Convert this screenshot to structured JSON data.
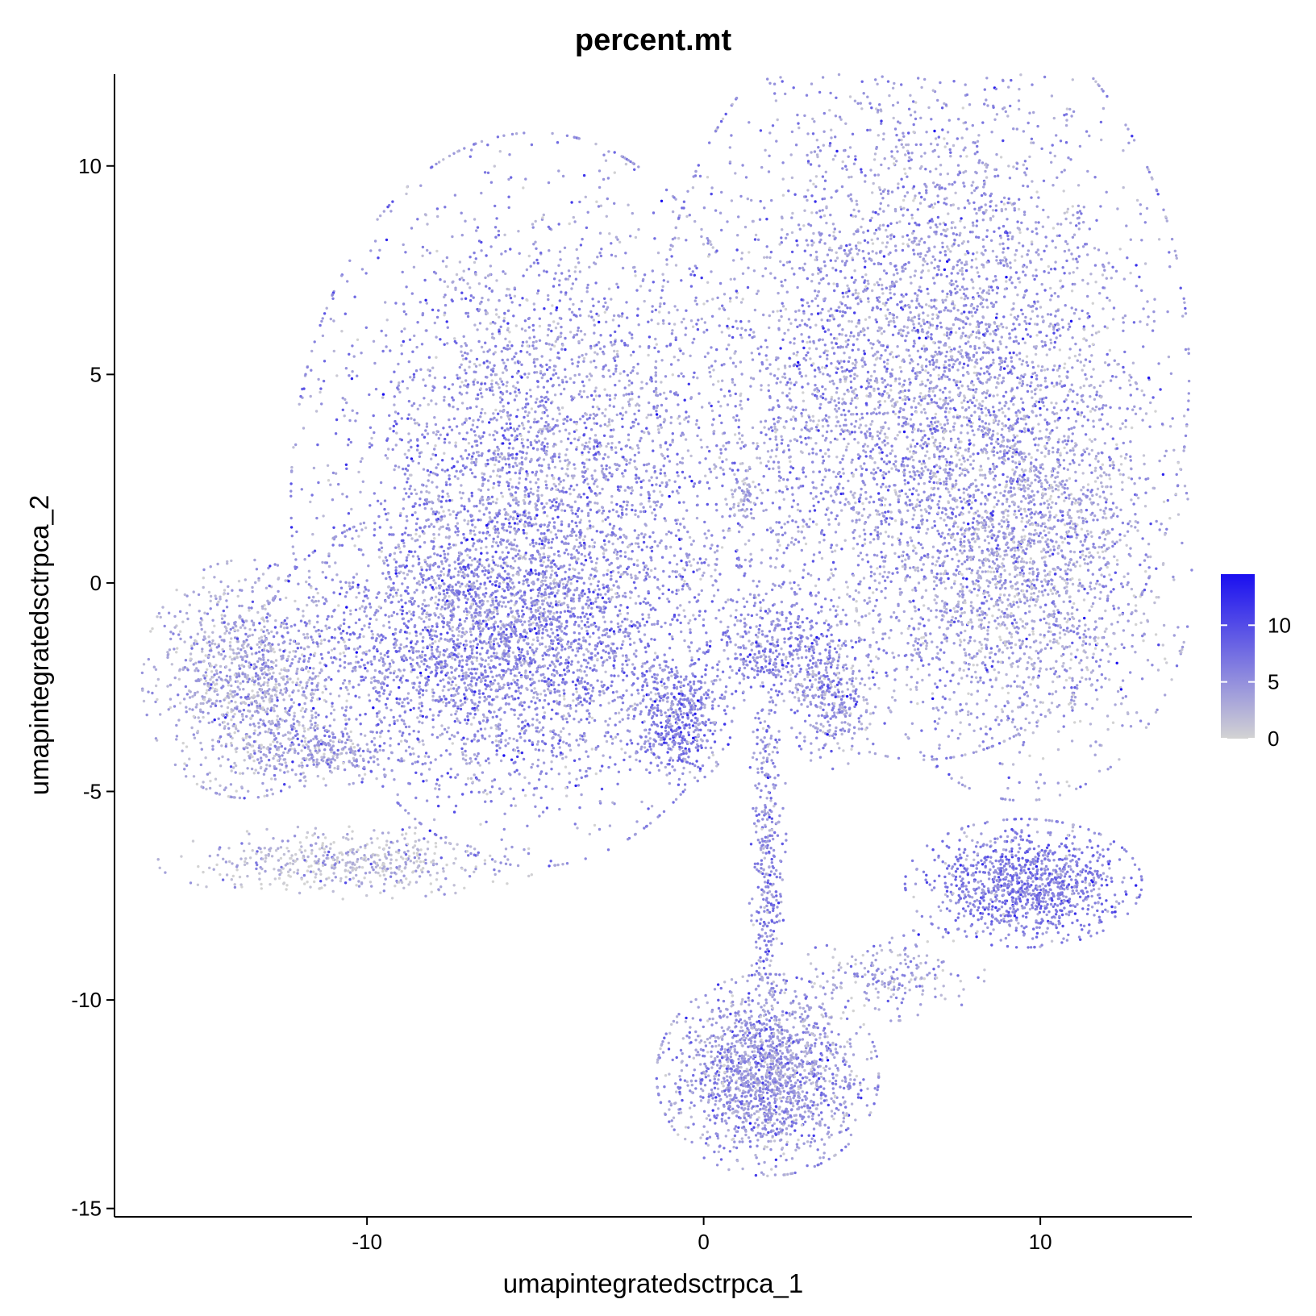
{
  "chart_data": {
    "type": "scatter",
    "title": "percent.mt",
    "xlabel": "umapintegratedsctrpca_1",
    "ylabel": "umapintegratedsctrpca_2",
    "xlim": [
      -17.5,
      14.5
    ],
    "ylim": [
      -15.2,
      12.2
    ],
    "xticks": [
      -10,
      0,
      10
    ],
    "xtick_labels": [
      "-10",
      "0",
      "10"
    ],
    "yticks": [
      -15,
      -10,
      -5,
      0,
      5,
      10
    ],
    "ytick_labels": [
      "-15",
      "-10",
      "-5",
      "0",
      "5",
      "10"
    ],
    "grid": false,
    "color_scale": {
      "name": "percent.mt",
      "low_color": "#d3d3d3",
      "high_color": "#1a0ff0",
      "range": [
        0,
        14.5
      ],
      "ticks": [
        0,
        5,
        10
      ],
      "tick_labels": [
        "0",
        "5",
        "10"
      ],
      "placement": "right"
    },
    "point_color_base": "#b8aee6",
    "clusters": [
      {
        "id": "left-upper-lobe",
        "center": [
          -5.0,
          2.0
        ],
        "spread": [
          3.3,
          4.0
        ],
        "n": 4200,
        "mean_value": 4.5
      },
      {
        "id": "left-upper-lobe-bottom",
        "center": [
          -6.5,
          -1.5
        ],
        "spread": [
          3.0,
          1.6
        ],
        "n": 2200,
        "mean_value": 5.2
      },
      {
        "id": "right-upper-lobe",
        "center": [
          6.5,
          5.0
        ],
        "spread": [
          3.6,
          4.2
        ],
        "n": 4800,
        "mean_value": 4.2
      },
      {
        "id": "right-lower-lobe",
        "center": [
          9.5,
          0.5
        ],
        "spread": [
          2.3,
          2.6
        ],
        "n": 2000,
        "mean_value": 3.5
      },
      {
        "id": "far-left-cluster",
        "center": [
          -13.6,
          -2.3
        ],
        "spread": [
          1.4,
          1.3
        ],
        "n": 1100,
        "mean_value": 3.0
      },
      {
        "id": "far-left-tail",
        "center": [
          -11.5,
          -4.0
        ],
        "spread": [
          1.3,
          0.4
        ],
        "n": 300,
        "mean_value": 3.2
      },
      {
        "id": "left-arc",
        "center": [
          -10.5,
          -6.7
        ],
        "spread": [
          2.6,
          0.4
        ],
        "n": 500,
        "mean_value": 1.5
      },
      {
        "id": "bottom-stem",
        "center": [
          1.9,
          -6.5
        ],
        "spread": [
          0.25,
          2.8
        ],
        "n": 400,
        "mean_value": 5.0
      },
      {
        "id": "bottom-base",
        "center": [
          1.9,
          -11.8
        ],
        "spread": [
          1.5,
          1.1
        ],
        "n": 1700,
        "mean_value": 4.3
      },
      {
        "id": "center-junction",
        "center": [
          2.0,
          -1.6
        ],
        "spread": [
          1.2,
          0.7
        ],
        "n": 350,
        "mean_value": 5.5
      },
      {
        "id": "small-lobe",
        "center": [
          3.8,
          -2.7
        ],
        "spread": [
          0.6,
          0.8
        ],
        "n": 300,
        "mean_value": 4.8
      },
      {
        "id": "center-left-blob",
        "center": [
          -0.7,
          -3.3
        ],
        "spread": [
          0.7,
          0.7
        ],
        "n": 450,
        "mean_value": 5.5
      },
      {
        "id": "right-bottom-cluster",
        "center": [
          9.5,
          -7.2
        ],
        "spread": [
          1.6,
          0.7
        ],
        "n": 1100,
        "mean_value": 6.0
      },
      {
        "id": "right-bottom-tail",
        "center": [
          5.5,
          -9.4
        ],
        "spread": [
          1.3,
          0.5
        ],
        "n": 200,
        "mean_value": 3.5
      },
      {
        "id": "center-small",
        "center": [
          1.2,
          2.1
        ],
        "spread": [
          0.25,
          0.35
        ],
        "n": 60,
        "mean_value": 3.0
      }
    ]
  }
}
